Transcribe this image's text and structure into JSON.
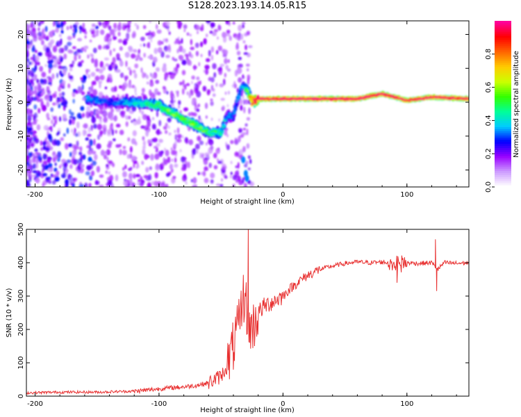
{
  "title": "S128.2023.193.14.05.R15",
  "chart_data": [
    {
      "type": "heatmap",
      "xlabel": "Height of straight line (km)",
      "ylabel": "Frequency (Hz)",
      "xlim": [
        -207,
        150
      ],
      "ylim": [
        -25,
        24
      ],
      "xticks": [
        -200,
        -100,
        0,
        100
      ],
      "yticks": [
        -20,
        -10,
        0,
        10,
        20
      ],
      "colorbar": {
        "label": "Normalized spectral amplitude",
        "range": [
          0.0,
          1.0
        ],
        "ticks": [
          "0.0",
          "0.2",
          "0.4",
          "0.6",
          "0.8"
        ],
        "colors": [
          "#ffffff",
          "#cc99ff",
          "#9900ff",
          "#0000ff",
          "#00ccff",
          "#00ff99",
          "#33ff00",
          "#ccff00",
          "#ffcc00",
          "#ff6600",
          "#ff0000",
          "#ff0099"
        ]
      },
      "ridge": {
        "x": [
          -158,
          -140,
          -120,
          -100,
          -90,
          -80,
          -70,
          -60,
          -50,
          -45,
          -40,
          -35,
          -32,
          -28,
          -25,
          -20,
          0,
          20,
          40,
          60,
          80,
          90,
          100,
          110,
          120,
          150
        ],
        "freq": [
          1,
          0,
          0,
          -1,
          -3,
          -5,
          -7,
          -9,
          -9,
          -4,
          -4,
          3,
          5,
          3,
          0,
          1,
          1,
          1,
          1,
          1,
          2.5,
          1.5,
          0.5,
          1,
          1.5,
          1
        ],
        "amplitude": [
          0.3,
          0.25,
          0.35,
          0.45,
          0.5,
          0.45,
          0.5,
          0.45,
          0.4,
          0.3,
          0.3,
          0.3,
          0.3,
          0.5,
          0.8,
          0.9,
          0.95,
          0.95,
          0.95,
          0.95,
          0.9,
          0.9,
          0.9,
          0.9,
          0.9,
          0.9
        ]
      }
    },
    {
      "type": "line",
      "xlabel": "Height of straight line (km)",
      "ylabel": "SNR (10 * v/v)",
      "xlim": [
        -207,
        150
      ],
      "ylim": [
        0,
        500
      ],
      "xticks": [
        -200,
        -100,
        0,
        100
      ],
      "yticks": [
        0,
        100,
        200,
        300,
        400,
        500
      ],
      "color": "#e83030",
      "x": [
        -207,
        -180,
        -150,
        -120,
        -110,
        -100,
        -90,
        -80,
        -70,
        -60,
        -50,
        -45,
        -40,
        -35,
        -32,
        -30,
        -28,
        -25,
        -20,
        -15,
        -10,
        -5,
        0,
        5,
        10,
        15,
        20,
        25,
        30,
        40,
        50,
        60,
        70,
        80,
        90,
        100,
        110,
        120,
        125,
        130,
        140,
        150
      ],
      "y": [
        10,
        12,
        12,
        15,
        18,
        22,
        25,
        28,
        32,
        40,
        60,
        90,
        150,
        220,
        300,
        280,
        220,
        200,
        250,
        270,
        280,
        290,
        300,
        320,
        335,
        350,
        362,
        372,
        380,
        390,
        398,
        402,
        400,
        402,
        398,
        400,
        398,
        400,
        380,
        400,
        398,
        400
      ],
      "spikes": [
        {
          "x": -28,
          "y": 505
        },
        {
          "x": -27,
          "y": 160
        },
        {
          "x": 123,
          "y": 470
        },
        {
          "x": 124,
          "y": 315
        },
        {
          "x": 92,
          "y": 340
        }
      ]
    }
  ]
}
